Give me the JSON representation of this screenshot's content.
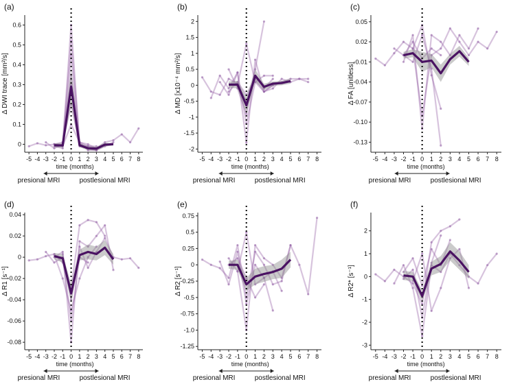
{
  "colors": {
    "mean_line": "#4a1262",
    "individual_lines": "#9a6aab",
    "ci_band": "#8c8c8c",
    "axis": "#222222",
    "marker_line": "#000000"
  },
  "x_axis": {
    "label": "time (months)",
    "ticks": [
      "-5",
      "-4",
      "-3",
      "-2",
      "-1",
      "0",
      "1",
      "2",
      "3",
      "4",
      "5",
      "6",
      "7",
      "8"
    ],
    "xlim": [
      -5.5,
      8.5
    ]
  },
  "annotations": {
    "pre": "presional MRI",
    "post": "postlesional MRI"
  },
  "chart_data": [
    {
      "type": "line",
      "panel_label": "(a)",
      "ylabel": "Δ DWI trace [mm²/s]",
      "ylim": [
        -0.04,
        0.65
      ],
      "yticks": [
        0,
        0.1,
        0.2,
        0.3,
        0.4,
        0.5,
        0.6
      ],
      "ytick_labels": [
        "0",
        "0.1",
        "0.2",
        "0.3",
        "0.4",
        "0.5",
        "0.6"
      ],
      "mean": {
        "x": [
          -2,
          -1,
          0,
          1,
          2,
          3,
          4,
          5
        ],
        "y": [
          -0.005,
          -0.006,
          0.29,
          -0.005,
          -0.02,
          -0.022,
          -0.002,
          0.0
        ]
      },
      "ci": {
        "x": [
          -2,
          -1,
          0,
          1,
          2,
          3,
          4,
          5
        ],
        "lower": [
          -0.015,
          -0.018,
          0.2,
          -0.015,
          -0.03,
          -0.032,
          -0.012,
          -0.005
        ],
        "upper": [
          0.005,
          0.006,
          0.38,
          0.005,
          -0.01,
          -0.012,
          0.008,
          0.005
        ]
      },
      "subjects": [
        {
          "x": [
            -5,
            -4,
            -3,
            -2,
            -1,
            0,
            1,
            2
          ],
          "y": [
            -0.01,
            0.005,
            -0.005,
            0.0,
            0.0,
            0.3,
            0.01,
            -0.01
          ]
        },
        {
          "x": [
            -3,
            -2,
            -1,
            0,
            1,
            2,
            3
          ],
          "y": [
            0.01,
            -0.02,
            0.0,
            0.6,
            0.0,
            -0.02,
            -0.03
          ]
        },
        {
          "x": [
            -2,
            -1,
            0,
            1,
            2,
            3,
            4
          ],
          "y": [
            -0.01,
            -0.02,
            0.45,
            -0.01,
            -0.01,
            -0.02,
            0.0
          ]
        },
        {
          "x": [
            -1,
            0,
            1,
            2,
            3,
            4,
            5
          ],
          "y": [
            0.01,
            0.2,
            0.0,
            -0.02,
            -0.03,
            -0.01,
            0.01
          ]
        },
        {
          "x": [
            -2,
            -1,
            0,
            1,
            2,
            3
          ],
          "y": [
            0.0,
            -0.01,
            0.1,
            0.01,
            -0.03,
            -0.03
          ]
        },
        {
          "x": [
            -1,
            0,
            1,
            2,
            3,
            4,
            5,
            6,
            7,
            8
          ],
          "y": [
            0.0,
            0.52,
            0.01,
            0.0,
            -0.02,
            0.01,
            0.02,
            0.05,
            0.01,
            0.08
          ]
        },
        {
          "x": [
            -2,
            -1,
            0,
            1,
            2,
            3
          ],
          "y": [
            0.0,
            0.01,
            0.35,
            0.0,
            -0.01,
            -0.01
          ]
        }
      ]
    },
    {
      "type": "line",
      "panel_label": "(b)",
      "ylabel": "Δ MD [x10⁻⁴ mm²/s]",
      "ylim": [
        -2.1,
        2.2
      ],
      "yticks": [
        -2,
        -1.5,
        -1,
        -0.5,
        0,
        0.5,
        1,
        1.5,
        2
      ],
      "ytick_labels": [
        "-2",
        "-1.5",
        "-1",
        "-0.5",
        "0",
        "0.5",
        "1",
        "1.5",
        "2"
      ],
      "mean": {
        "x": [
          -2,
          -1,
          0,
          1,
          2,
          3,
          4,
          5
        ],
        "y": [
          0.02,
          0.02,
          -0.63,
          0.3,
          -0.05,
          0.05,
          0.07,
          0.13
        ]
      },
      "ci": {
        "x": [
          -2,
          -1,
          0,
          1,
          2,
          3,
          4,
          5
        ],
        "lower": [
          -0.08,
          -0.1,
          -0.9,
          0.1,
          -0.15,
          -0.02,
          0.0,
          0.05
        ],
        "upper": [
          0.12,
          0.14,
          -0.36,
          0.5,
          0.05,
          0.12,
          0.14,
          0.21
        ]
      },
      "subjects": [
        {
          "x": [
            -5,
            -4,
            -3,
            -2,
            -1,
            0,
            1,
            2,
            3
          ],
          "y": [
            0.25,
            -0.2,
            -0.3,
            0.2,
            0.05,
            -0.5,
            0.3,
            -0.1,
            0.2
          ]
        },
        {
          "x": [
            -3,
            -2,
            -1,
            0,
            1,
            2,
            3,
            4,
            5,
            6,
            7
          ],
          "y": [
            0.1,
            -0.3,
            0.4,
            -1.8,
            0.8,
            -0.2,
            0.0,
            0.1,
            0.2,
            0.2,
            0.1
          ]
        },
        {
          "x": [
            -2,
            -1,
            0,
            1,
            2
          ],
          "y": [
            0.5,
            -0.1,
            -0.9,
            0.5,
            2.0
          ]
        },
        {
          "x": [
            -2,
            -1,
            0,
            1,
            2,
            3,
            4,
            5,
            6,
            7
          ],
          "y": [
            -0.2,
            0.1,
            -0.3,
            0.2,
            -0.2,
            -0.1,
            0.2,
            0.1,
            0.2,
            0.2
          ]
        },
        {
          "x": [
            -4,
            -3,
            -2,
            -1,
            0,
            1,
            2,
            3
          ],
          "y": [
            -0.4,
            0.3,
            -0.1,
            0.4,
            -1.2,
            0.1,
            0.3,
            0.3
          ]
        },
        {
          "x": [
            -1,
            0,
            1,
            2,
            3
          ],
          "y": [
            0.0,
            1.3,
            0.1,
            -0.2,
            0.0
          ]
        }
      ]
    },
    {
      "type": "line",
      "panel_label": "(c)",
      "ylabel": "Δ FA [unitless]",
      "ylim": [
        -0.145,
        0.06
      ],
      "yticks": [
        0.05,
        0.02,
        -0.01,
        -0.04,
        -0.07,
        -0.1,
        -0.13
      ],
      "ytick_labels": [
        "0.05",
        "0.02",
        "-0.01",
        "-0.04",
        "-0.07",
        "-0.10",
        "-0.13"
      ],
      "mean": {
        "x": [
          -2,
          -1,
          0,
          1,
          2,
          3,
          4,
          5
        ],
        "y": [
          0.0,
          0.003,
          -0.01,
          -0.008,
          -0.027,
          -0.006,
          0.006,
          -0.01
        ]
      },
      "ci": {
        "x": [
          -2,
          -1,
          0,
          1,
          2,
          3,
          4,
          5
        ],
        "lower": [
          -0.005,
          -0.003,
          -0.025,
          -0.018,
          -0.04,
          -0.014,
          -0.002,
          -0.016
        ],
        "upper": [
          0.005,
          0.009,
          0.005,
          0.002,
          -0.014,
          0.002,
          0.014,
          -0.004
        ]
      },
      "subjects": [
        {
          "x": [
            -5,
            -4,
            -3,
            -2,
            -1,
            0,
            1,
            2
          ],
          "y": [
            -0.005,
            -0.015,
            0.003,
            0.02,
            0.01,
            0.045,
            -0.03,
            -0.08
          ]
        },
        {
          "x": [
            -2,
            -1,
            0,
            1,
            2,
            3,
            4,
            5,
            6
          ],
          "y": [
            -0.01,
            0.03,
            -0.11,
            0.03,
            0.02,
            0.0,
            0.03,
            0.01,
            0.04
          ]
        },
        {
          "x": [
            -2,
            -1,
            0,
            1,
            2
          ],
          "y": [
            0.0,
            -0.01,
            0.03,
            -0.02,
            -0.135
          ]
        },
        {
          "x": [
            -1,
            0,
            1,
            2,
            3,
            4,
            5,
            6,
            7,
            8
          ],
          "y": [
            0.01,
            -0.09,
            0.0,
            0.01,
            0.04,
            0.02,
            0.0,
            0.02,
            0.01,
            0.035
          ]
        },
        {
          "x": [
            -3,
            -2,
            -1,
            0,
            1,
            2
          ],
          "y": [
            0.01,
            0.0,
            0.02,
            -0.005,
            0.01,
            0.0
          ]
        }
      ]
    },
    {
      "type": "line",
      "panel_label": "(d)",
      "ylabel": "Δ R1 [s⁻¹]",
      "ylim": [
        -0.087,
        0.042
      ],
      "yticks": [
        0.04,
        0.02,
        0,
        -0.02,
        -0.04,
        -0.06,
        -0.08
      ],
      "ytick_labels": [
        "0.04",
        "0.02",
        "0",
        "-0.02",
        "-0.04",
        "-0.06",
        "-0.08"
      ],
      "mean": {
        "x": [
          -2,
          -1,
          0,
          1,
          2,
          3,
          4,
          5
        ],
        "y": [
          0.001,
          -0.001,
          -0.034,
          0.002,
          0.005,
          0.003,
          0.009,
          -0.002
        ]
      },
      "ci": {
        "x": [
          -2,
          -1,
          0,
          1,
          2,
          3,
          4,
          5
        ],
        "lower": [
          -0.002,
          -0.005,
          -0.043,
          -0.003,
          -0.002,
          -0.003,
          0.002,
          -0.007
        ],
        "upper": [
          0.004,
          0.003,
          -0.025,
          0.007,
          0.012,
          0.01,
          0.016,
          0.003
        ]
      },
      "subjects": [
        {
          "x": [
            -5,
            -4,
            -3,
            -2,
            -1,
            0,
            1,
            2,
            3,
            4
          ],
          "y": [
            -0.003,
            -0.002,
            0.001,
            0.003,
            -0.005,
            -0.03,
            0.03,
            0.035,
            0.033,
            0.02
          ]
        },
        {
          "x": [
            -2,
            -1,
            0,
            1,
            2,
            3,
            4,
            5
          ],
          "y": [
            0.0,
            0.005,
            -0.08,
            0.015,
            0.01,
            0.02,
            0.03,
            -0.012
          ]
        },
        {
          "x": [
            -2,
            -1,
            0,
            1,
            2,
            3
          ],
          "y": [
            0.002,
            -0.02,
            -0.05,
            -0.02,
            0.0,
            0.01
          ]
        },
        {
          "x": [
            -1,
            0,
            1,
            2,
            3,
            4,
            5,
            6,
            7,
            8
          ],
          "y": [
            0.003,
            -0.04,
            0.01,
            -0.01,
            0.005,
            0.018,
            0.0,
            -0.002,
            -0.001,
            -0.01
          ]
        },
        {
          "x": [
            -3,
            -2,
            -1,
            0,
            1,
            2
          ],
          "y": [
            0.005,
            -0.005,
            0.0,
            -0.06,
            0.0,
            -0.005
          ]
        }
      ]
    },
    {
      "type": "line",
      "panel_label": "(e)",
      "ylabel": "Δ R2 [s⁻¹]",
      "ylim": [
        -1.3,
        0.8
      ],
      "yticks": [
        0.75,
        0.5,
        0.25,
        0,
        -0.25,
        -0.5,
        -0.75,
        -1.0,
        -1.25
      ],
      "ytick_labels": [
        "0.75",
        "0.5",
        "0.25",
        "0",
        "-0.25",
        "-0.5",
        "-0.75",
        "-1.0",
        "-1.25"
      ],
      "mean": {
        "x": [
          -2,
          -1,
          0,
          1,
          2,
          3,
          4,
          5
        ],
        "y": [
          0.0,
          0.0,
          -0.3,
          -0.18,
          -0.14,
          -0.11,
          -0.06,
          0.08
        ]
      },
      "ci": {
        "x": [
          -2,
          -1,
          0,
          1,
          2,
          3,
          4,
          5
        ],
        "lower": [
          -0.06,
          -0.08,
          -0.4,
          -0.3,
          -0.26,
          -0.22,
          -0.2,
          -0.04
        ],
        "upper": [
          0.06,
          0.08,
          -0.2,
          -0.06,
          -0.02,
          0.0,
          0.08,
          0.2
        ]
      },
      "subjects": [
        {
          "x": [
            -5,
            -4,
            -3,
            -2,
            -1,
            0,
            1,
            2,
            3,
            4,
            5
          ],
          "y": [
            0.08,
            0.0,
            -0.05,
            -0.2,
            0.3,
            -0.5,
            0.2,
            0.0,
            -0.3,
            -0.25,
            0.3
          ]
        },
        {
          "x": [
            -2,
            -1,
            0,
            1,
            2,
            3,
            4,
            5,
            6,
            7,
            8
          ],
          "y": [
            0.1,
            -0.1,
            -1.0,
            0.3,
            0.1,
            0.0,
            -0.2,
            0.3,
            0.0,
            -0.45,
            0.72
          ]
        },
        {
          "x": [
            -1,
            0,
            1,
            2,
            3
          ],
          "y": [
            -0.1,
            0.5,
            -0.3,
            -0.2,
            -0.7
          ]
        },
        {
          "x": [
            -3,
            -2,
            -1,
            0,
            1,
            2,
            3,
            4
          ],
          "y": [
            0.05,
            -0.3,
            0.2,
            -0.6,
            0.0,
            -0.2,
            -0.1,
            -0.4
          ]
        },
        {
          "x": [
            -2,
            -1,
            0,
            1,
            2
          ],
          "y": [
            0.0,
            0.1,
            -0.2,
            -0.5,
            -0.3
          ]
        }
      ]
    },
    {
      "type": "line",
      "panel_label": "(f)",
      "ylabel": "Δ R2* [s⁻¹]",
      "ylim": [
        -3.2,
        2.8
      ],
      "yticks": [
        2,
        1,
        0,
        -1,
        -2,
        -3
      ],
      "ytick_labels": [
        "2",
        "1",
        "0",
        "-1",
        "-2",
        "-3"
      ],
      "mean": {
        "x": [
          -2,
          -1,
          0,
          1,
          2,
          3,
          4,
          5
        ],
        "y": [
          0.05,
          0.0,
          -0.85,
          0.35,
          0.55,
          1.1,
          0.7,
          0.2
        ]
      },
      "ci": {
        "x": [
          -2,
          -1,
          0,
          1,
          2,
          3,
          4,
          5
        ],
        "lower": [
          -0.15,
          -0.2,
          -1.1,
          0.05,
          0.2,
          0.7,
          0.3,
          -0.1
        ],
        "upper": [
          0.25,
          0.2,
          -0.6,
          0.65,
          0.9,
          1.5,
          1.1,
          0.5
        ]
      },
      "subjects": [
        {
          "x": [
            -5,
            -4,
            -3,
            -2,
            -1,
            0,
            1,
            2,
            3,
            4
          ],
          "y": [
            0.1,
            -0.2,
            0.3,
            0.0,
            -0.3,
            -1.2,
            1.5,
            2.0,
            2.2,
            2.5
          ]
        },
        {
          "x": [
            -3,
            -2,
            -1,
            0,
            1,
            2,
            3,
            4,
            5,
            6,
            7,
            8
          ],
          "y": [
            -0.3,
            0.5,
            -0.5,
            -2.6,
            0.5,
            0.2,
            1.0,
            0.5,
            0.0,
            -0.3,
            0.5,
            1.0
          ]
        },
        {
          "x": [
            -2,
            -1,
            0,
            1,
            2,
            3
          ],
          "y": [
            0.2,
            0.8,
            -0.4,
            1.2,
            0.5,
            1.6
          ]
        },
        {
          "x": [
            -1,
            0,
            1,
            2,
            3,
            4,
            5
          ],
          "y": [
            -0.2,
            1.0,
            -1.5,
            -0.5,
            0.8,
            1.2,
            -0.5
          ]
        },
        {
          "x": [
            -2,
            -1,
            0,
            1,
            2
          ],
          "y": [
            -0.1,
            0.3,
            -1.8,
            0.6,
            1.8
          ]
        }
      ]
    }
  ]
}
